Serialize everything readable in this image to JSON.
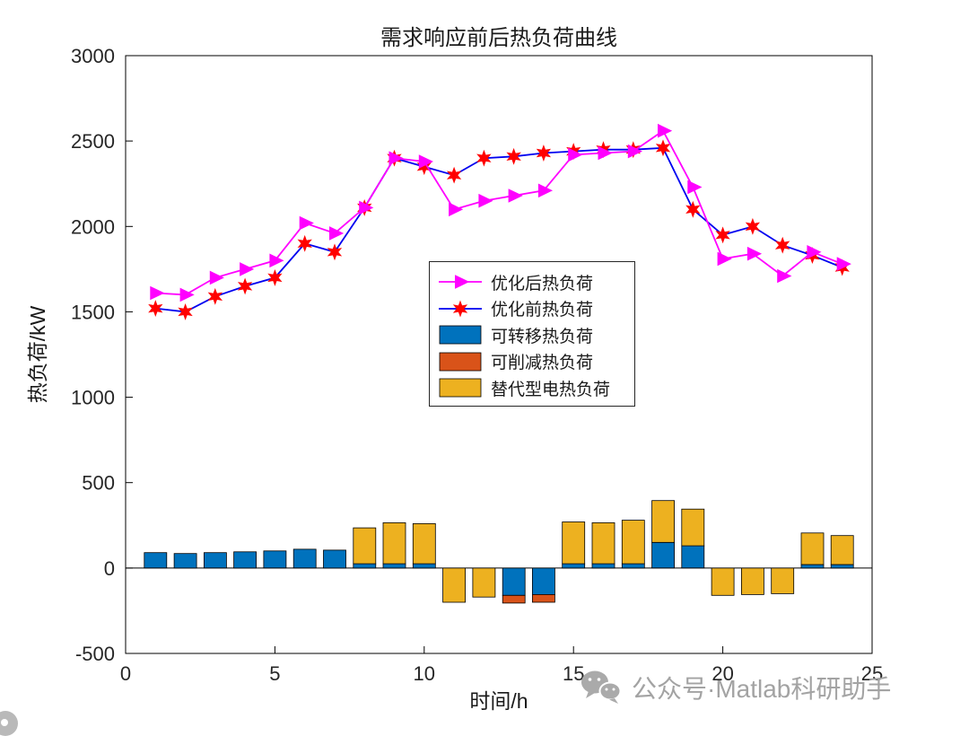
{
  "figure": {
    "title": "需求响应前后热负荷曲线",
    "xlabel": "时间/h",
    "ylabel": "热负荷/kW",
    "watermark": "公众号·Matlab科研助手"
  },
  "chart_data": {
    "type": "line+bar",
    "title": "需求响应前后热负荷曲线",
    "xlabel": "时间/h",
    "ylabel": "热负荷/kW",
    "xlim": [
      0,
      25
    ],
    "ylim": [
      -500,
      3000
    ],
    "xticks": [
      0,
      5,
      10,
      15,
      20,
      25
    ],
    "yticks": [
      -500,
      0,
      500,
      1000,
      1500,
      2000,
      2500,
      3000
    ],
    "grid": false,
    "legend_position": "center",
    "x": [
      1,
      2,
      3,
      4,
      5,
      6,
      7,
      8,
      9,
      10,
      11,
      12,
      13,
      14,
      15,
      16,
      17,
      18,
      19,
      20,
      21,
      22,
      23,
      24
    ],
    "series": [
      {
        "name": "优化后热负荷",
        "type": "line",
        "color": "#FF00FF",
        "marker": "triangle-right",
        "marker_color": "#FF00FF",
        "values": [
          1610,
          1600,
          1700,
          1750,
          1800,
          2020,
          1960,
          2110,
          2400,
          2380,
          2100,
          2150,
          2180,
          2210,
          2420,
          2430,
          2440,
          2560,
          2230,
          1810,
          1840,
          1710,
          1850,
          1780
        ]
      },
      {
        "name": "优化前热负荷",
        "type": "line",
        "color": "#0000F0",
        "marker": "star6",
        "marker_color": "#FF0000",
        "values": [
          1520,
          1500,
          1590,
          1650,
          1700,
          1900,
          1850,
          2110,
          2400,
          2350,
          2300,
          2400,
          2410,
          2430,
          2440,
          2450,
          2450,
          2460,
          2100,
          1950,
          2000,
          1890,
          1830,
          1760
        ]
      }
    ],
    "bar_series": [
      {
        "name": "可转移热负荷",
        "color": "#0072BD",
        "values": [
          90,
          85,
          90,
          95,
          100,
          110,
          105,
          25,
          25,
          25,
          0,
          0,
          -160,
          -155,
          25,
          25,
          25,
          150,
          130,
          0,
          0,
          0,
          20,
          20
        ]
      },
      {
        "name": "可削减热负荷",
        "color": "#D95319",
        "values": [
          0,
          0,
          0,
          0,
          0,
          0,
          0,
          0,
          0,
          0,
          0,
          0,
          -45,
          -45,
          0,
          0,
          0,
          0,
          0,
          0,
          0,
          0,
          0,
          0
        ]
      },
      {
        "name": "替代型电热负荷",
        "color": "#EDB120",
        "values": [
          0,
          0,
          0,
          0,
          0,
          0,
          0,
          210,
          240,
          235,
          -200,
          -170,
          0,
          0,
          245,
          240,
          255,
          245,
          215,
          -160,
          -155,
          -150,
          185,
          170
        ]
      }
    ],
    "legend": [
      {
        "label": "优化后热负荷",
        "type": "line",
        "color": "#FF00FF",
        "marker": "triangle-right",
        "marker_color": "#FF00FF"
      },
      {
        "label": "优化前热负荷",
        "type": "line",
        "color": "#0000F0",
        "marker": "star6",
        "marker_color": "#FF0000"
      },
      {
        "label": "可转移热负荷",
        "type": "patch",
        "color": "#0072BD"
      },
      {
        "label": "可削减热负荷",
        "type": "patch",
        "color": "#D95319"
      },
      {
        "label": "替代型电热负荷",
        "type": "patch",
        "color": "#EDB120"
      }
    ]
  }
}
